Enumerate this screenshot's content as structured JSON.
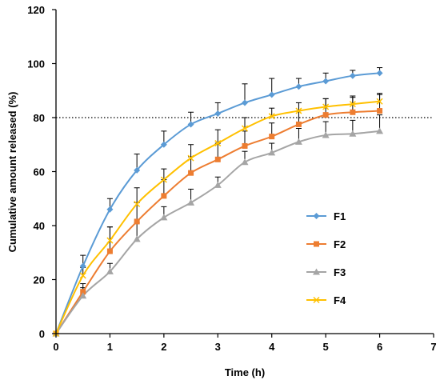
{
  "chart_data": {
    "type": "line",
    "xlabel": "Time (h)",
    "ylabel": "Cumulative amount released (%)",
    "xlim": [
      0,
      7
    ],
    "ylim": [
      0,
      120
    ],
    "xticks": [
      "0",
      "1",
      "2",
      "3",
      "4",
      "5",
      "6",
      "7"
    ],
    "yticks": [
      "0",
      "20",
      "40",
      "60",
      "80",
      "100",
      "120"
    ],
    "grid": false,
    "legend_position": "right",
    "reference_line": {
      "y": 80,
      "style": "dotted",
      "color": "#000000"
    },
    "x": [
      0,
      0.5,
      1,
      1.5,
      2,
      2.5,
      3,
      3.5,
      4,
      4.5,
      5,
      5.5,
      6
    ],
    "series": [
      {
        "name": "F1",
        "color": "#5b9bd5",
        "marker": "diamond",
        "values": [
          0,
          25,
          46,
          60.5,
          70,
          77.5,
          81.5,
          85.5,
          88.5,
          91.5,
          93.5,
          95.5,
          96.5
        ],
        "errors": [
          0,
          4,
          4,
          6,
          5,
          4.5,
          4,
          7,
          6,
          3,
          3,
          2,
          2
        ]
      },
      {
        "name": "F2",
        "color": "#ed7d31",
        "marker": "square",
        "values": [
          0,
          15.5,
          30.5,
          41.5,
          51,
          59.5,
          64.5,
          69.5,
          73,
          77.5,
          81,
          82,
          82.5
        ],
        "errors": [
          0,
          3,
          9,
          7,
          6,
          6,
          6,
          5.5,
          5,
          5,
          6,
          5.5,
          6
        ]
      },
      {
        "name": "F3",
        "color": "#a5a5a5",
        "marker": "triangle",
        "values": [
          0,
          14,
          23,
          35,
          43,
          48.5,
          55,
          63.5,
          67,
          71,
          73.5,
          74,
          75
        ],
        "errors": [
          0,
          3,
          3,
          6,
          4,
          5,
          3,
          4,
          3.5,
          5,
          5,
          5,
          6
        ]
      },
      {
        "name": "F4",
        "color": "#ffc000",
        "marker": "x",
        "values": [
          0,
          21.5,
          34.5,
          48,
          57,
          65,
          70.5,
          76,
          80.5,
          82.5,
          84,
          85,
          86
        ],
        "errors": [
          0,
          3,
          5,
          6,
          4,
          5,
          5,
          4,
          3,
          3,
          3,
          3,
          3
        ]
      }
    ]
  }
}
